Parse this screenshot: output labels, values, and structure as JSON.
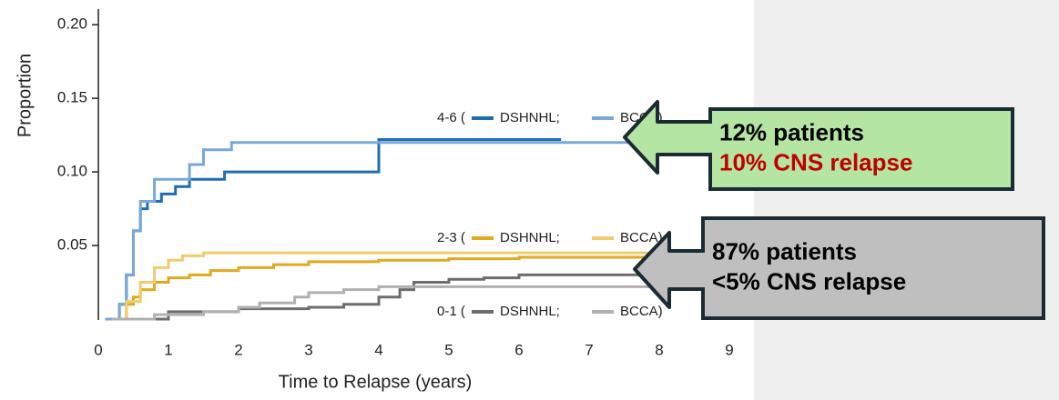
{
  "chart_data": {
    "type": "step",
    "ylabel": "Proportion",
    "xlabel": "Time to Relapse (years)",
    "xlim": [
      0,
      9.3
    ],
    "ylim": [
      0,
      0.21
    ],
    "xticks": [
      0,
      1,
      2,
      3,
      4,
      5,
      6,
      7,
      8,
      9
    ],
    "yticks": [
      {
        "value": 0.05,
        "label": "0.05"
      },
      {
        "value": 0.1,
        "label": "0.10"
      },
      {
        "value": 0.15,
        "label": "0.15"
      },
      {
        "value": 0.2,
        "label": "0.20"
      }
    ],
    "groups": [
      "4-6 (",
      "2-3 (",
      "0-1 ("
    ],
    "series": [
      {
        "name": "DSHNHL;",
        "group": 0,
        "color": "#1f6db3",
        "x": [
          0.1,
          0.3,
          0.4,
          0.5,
          0.6,
          0.7,
          0.9,
          1.1,
          1.3,
          1.6,
          1.8,
          4.0,
          6.6
        ],
        "values": [
          0,
          0.01,
          0.03,
          0.06,
          0.075,
          0.08,
          0.085,
          0.09,
          0.095,
          0.095,
          0.1,
          0.122,
          0.122
        ]
      },
      {
        "name": "BCCA)",
        "group": 0,
        "color": "#79a7db",
        "x": [
          0.1,
          0.3,
          0.4,
          0.5,
          0.6,
          0.8,
          1.0,
          1.3,
          1.5,
          1.9,
          9.0
        ],
        "values": [
          0,
          0.01,
          0.03,
          0.06,
          0.08,
          0.095,
          0.095,
          0.105,
          0.115,
          0.12,
          0.12
        ]
      },
      {
        "name": "DSHNHL;",
        "group": 1,
        "color": "#e2a91d",
        "x": [
          0.2,
          0.4,
          0.5,
          0.6,
          0.8,
          1.0,
          1.3,
          1.6,
          2.0,
          2.5,
          3.0,
          4.0,
          5.0,
          6.0,
          8.5
        ],
        "values": [
          0,
          0.01,
          0.015,
          0.02,
          0.025,
          0.028,
          0.03,
          0.033,
          0.035,
          0.037,
          0.039,
          0.04,
          0.041,
          0.042,
          0.042
        ]
      },
      {
        "name": "BCCA)",
        "group": 1,
        "color": "#f0cc6e",
        "x": [
          0.2,
          0.4,
          0.6,
          0.8,
          1.0,
          1.2,
          1.5,
          9.0
        ],
        "values": [
          0,
          0.012,
          0.025,
          0.035,
          0.04,
          0.043,
          0.045,
          0.045
        ]
      },
      {
        "name": "DSHNHL;",
        "group": 2,
        "color": "#6d6d6d",
        "x": [
          0.3,
          1.0,
          2.0,
          3.0,
          3.5,
          4.0,
          4.3,
          4.5,
          5.0,
          5.5,
          6.0,
          8.5
        ],
        "values": [
          0,
          0.005,
          0.007,
          0.008,
          0.01,
          0.015,
          0.02,
          0.025,
          0.027,
          0.028,
          0.03,
          0.03
        ]
      },
      {
        "name": "BCCA)",
        "group": 2,
        "color": "#b0b0b0",
        "x": [
          0.2,
          0.8,
          1.5,
          2.0,
          2.3,
          2.8,
          3.0,
          3.5,
          4.0,
          9.0
        ],
        "values": [
          0,
          0.003,
          0.005,
          0.008,
          0.011,
          0.015,
          0.018,
          0.02,
          0.022,
          0.022
        ]
      }
    ],
    "annotations": [
      {
        "lines": [
          "12% patients",
          "10% CNS relapse"
        ],
        "colors": [
          "#000000",
          "#c00000"
        ],
        "fill": "#b5e5a2"
      },
      {
        "lines": [
          "87% patients",
          "<5% CNS relapse"
        ],
        "colors": [
          "#000000",
          "#000000"
        ],
        "fill": "#bfbfbf"
      }
    ]
  }
}
